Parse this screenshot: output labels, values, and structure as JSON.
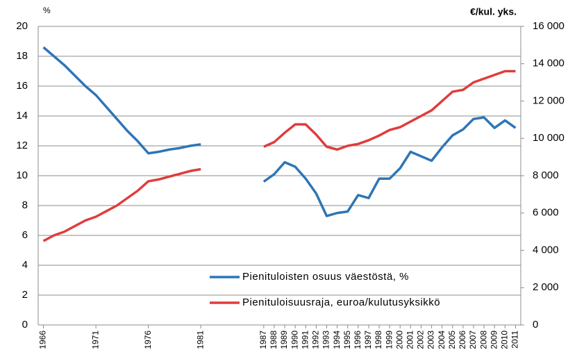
{
  "chart_data": {
    "type": "line",
    "y_label": "%",
    "y2_label": "€/kul. yks.",
    "x": [
      1966,
      1967,
      1968,
      1969,
      1970,
      1971,
      1972,
      1973,
      1974,
      1975,
      1976,
      1977,
      1978,
      1979,
      1980,
      1981,
      1982,
      1983,
      1984,
      1985,
      1986,
      1987,
      1988,
      1989,
      1990,
      1991,
      1992,
      1993,
      1994,
      1995,
      1996,
      1997,
      1998,
      1999,
      2000,
      2001,
      2002,
      2003,
      2004,
      2005,
      2006,
      2007,
      2008,
      2009,
      2010,
      2011
    ],
    "series": [
      {
        "name": "Pienituloisten osuus väestöstä, %",
        "color": "#2e75b6",
        "values": [
          18.6,
          18.0,
          17.4,
          16.7,
          16.0,
          15.4,
          14.6,
          13.8,
          13.0,
          12.3,
          11.5,
          11.6,
          11.75,
          11.85,
          12.0,
          12.1,
          null,
          null,
          null,
          null,
          null,
          9.6,
          10.1,
          10.9,
          10.6,
          9.8,
          8.8,
          7.3,
          7.5,
          7.6,
          8.7,
          8.5,
          9.8,
          9.8,
          10.5,
          11.6,
          11.3,
          11.0,
          11.9,
          12.7,
          13.1,
          13.8,
          13.9,
          13.2,
          13.7,
          13.2
        ]
      },
      {
        "name": "Pienituloisuusraja, euroa/kulutusyksikkö",
        "color": "#e03c3c",
        "axis": "y2",
        "values": [
          4500,
          4800,
          5000,
          5300,
          5600,
          5800,
          6100,
          6400,
          6800,
          7200,
          7700,
          7800,
          7950,
          8100,
          8250,
          8350,
          null,
          null,
          null,
          null,
          null,
          9550,
          9800,
          10300,
          10750,
          10750,
          10200,
          9550,
          9400,
          9600,
          9700,
          9900,
          10150,
          10450,
          10600,
          10900,
          11200,
          11500,
          12000,
          12500,
          12600,
          13000,
          13200,
          13400,
          13600,
          13600
        ]
      }
    ],
    "xlim": [
      1965.5,
      2011.5
    ],
    "xticks": [
      1966,
      1971,
      1976,
      1981,
      1987,
      1988,
      1989,
      1990,
      1991,
      1992,
      1993,
      1994,
      1995,
      1996,
      1997,
      1998,
      1999,
      2000,
      2001,
      2002,
      2003,
      2004,
      2005,
      2006,
      2007,
      2008,
      2009,
      2010,
      2011
    ],
    "ylim": [
      0,
      20
    ],
    "yticks": [
      0,
      2,
      4,
      6,
      8,
      10,
      12,
      14,
      16,
      18,
      20
    ],
    "y2lim": [
      0,
      16000
    ],
    "y2ticks": [
      0,
      {
        "value": 2000,
        "label": "2 000"
      },
      {
        "value": 4000,
        "label": "4 000"
      },
      {
        "value": 6000,
        "label": "6 000"
      },
      {
        "value": 8000,
        "label": "8 000"
      },
      {
        "value": 10000,
        "label": "10 000"
      },
      {
        "value": 12000,
        "label": "12 000"
      },
      {
        "value": 14000,
        "label": "14 000"
      },
      {
        "value": 16000,
        "label": "16 000"
      }
    ],
    "grid": true,
    "legend": "lower center"
  }
}
